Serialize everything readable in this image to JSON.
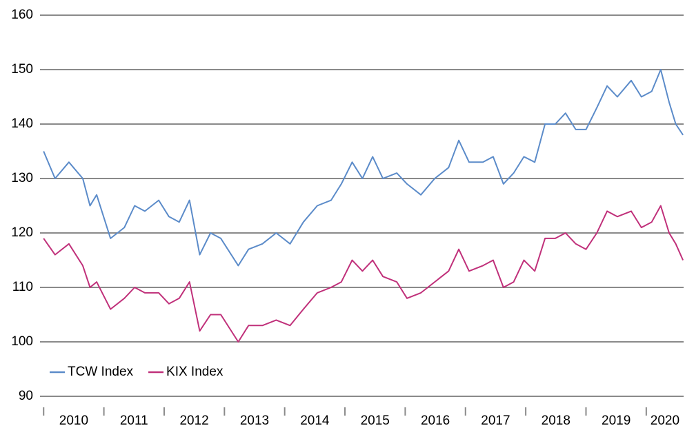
{
  "chart_data": {
    "type": "line",
    "x": [
      2010.0,
      2010.19,
      2010.42,
      2010.65,
      2010.77,
      2010.88,
      2011.11,
      2011.34,
      2011.51,
      2011.68,
      2011.91,
      2012.08,
      2012.25,
      2012.42,
      2012.59,
      2012.77,
      2012.94,
      2013.23,
      2013.4,
      2013.63,
      2013.86,
      2014.09,
      2014.31,
      2014.54,
      2014.77,
      2014.94,
      2015.12,
      2015.29,
      2015.46,
      2015.63,
      2015.86,
      2016.03,
      2016.26,
      2016.49,
      2016.72,
      2016.89,
      2017.06,
      2017.29,
      2017.46,
      2017.63,
      2017.8,
      2017.97,
      2018.15,
      2018.32,
      2018.49,
      2018.66,
      2018.83,
      2019.0,
      2019.18,
      2019.35,
      2019.52,
      2019.75,
      2019.92,
      2020.09,
      2020.24,
      2020.38,
      2020.49,
      2020.61
    ],
    "series": [
      {
        "name": "TCW Index",
        "color": "#5b8bc9",
        "values": [
          135,
          130,
          133,
          130,
          125,
          127,
          119,
          121,
          125,
          124,
          126,
          123,
          122,
          126,
          116,
          120,
          119,
          114,
          117,
          118,
          120,
          118,
          122,
          125,
          126,
          129,
          133,
          130,
          134,
          130,
          131,
          129,
          127,
          130,
          132,
          137,
          133,
          133,
          134,
          129,
          131,
          134,
          133,
          140,
          140,
          142,
          139,
          139,
          143,
          147,
          145,
          148,
          145,
          146,
          150,
          144,
          140,
          138
        ]
      },
      {
        "name": "KIX Index",
        "color": "#c0307a",
        "values": [
          119,
          116,
          118,
          114,
          110,
          111,
          106,
          108,
          110,
          109,
          109,
          107,
          108,
          111,
          102,
          105,
          105,
          100,
          103,
          103,
          104,
          103,
          106,
          109,
          110,
          111,
          115,
          113,
          115,
          112,
          111,
          108,
          109,
          111,
          113,
          117,
          113,
          114,
          115,
          110,
          111,
          115,
          113,
          119,
          119,
          120,
          118,
          117,
          120,
          124,
          123,
          124,
          121,
          122,
          125,
          120,
          118,
          115
        ]
      }
    ],
    "xlim": [
      2009.94,
      2020.62
    ],
    "xticks": [
      2010,
      2011,
      2012,
      2013,
      2014,
      2015,
      2016,
      2017,
      2018,
      2019,
      2020
    ],
    "ylim": [
      90,
      160
    ],
    "yticks": [
      90,
      100,
      110,
      120,
      130,
      140,
      150,
      160
    ],
    "grid": true,
    "legend": "lower left"
  }
}
